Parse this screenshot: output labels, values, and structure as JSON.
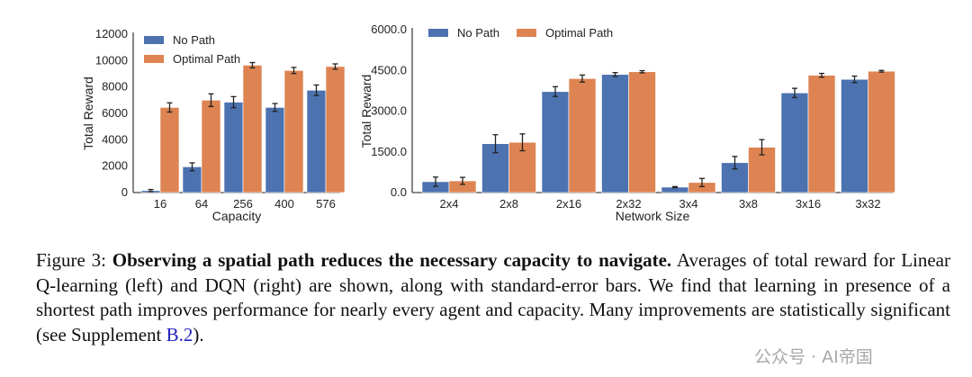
{
  "colors": {
    "no_path": "#4c72b0",
    "optimal_path": "#dd8452"
  },
  "chart_data": [
    {
      "type": "bar",
      "title": "",
      "xlabel": "Capacity",
      "ylabel": "Total Reward",
      "ylim": [
        0,
        12000
      ],
      "yticks": [
        "0",
        "2000",
        "4000",
        "6000",
        "8000",
        "10000",
        "12000"
      ],
      "categories": [
        "16",
        "64",
        "256",
        "400",
        "576"
      ],
      "legend": "top-left",
      "series": [
        {
          "name": "No Path",
          "values": [
            150,
            1950,
            6850,
            6450,
            7750
          ],
          "stderr": [
            80,
            300,
            420,
            300,
            400
          ]
        },
        {
          "name": "Optimal Path",
          "values": [
            6450,
            7000,
            9650,
            9250,
            9550
          ],
          "stderr": [
            350,
            480,
            200,
            230,
            200
          ]
        }
      ]
    },
    {
      "type": "bar",
      "title": "",
      "xlabel": "Network Size",
      "ylabel": "Total Reward",
      "ylim": [
        0,
        6000
      ],
      "yticks": [
        "0.0",
        "1500.0",
        "3000.0",
        "4500.0",
        "6000.0"
      ],
      "categories": [
        "2x4",
        "2x8",
        "2x16",
        "2x32",
        "3x4",
        "3x8",
        "3x16",
        "3x32"
      ],
      "legend": "top-left",
      "series": [
        {
          "name": "No Path",
          "values": [
            400,
            1800,
            3720,
            4350,
            200,
            1100,
            3670,
            4170
          ],
          "stderr": [
            170,
            330,
            180,
            70,
            20,
            230,
            170,
            120
          ]
        },
        {
          "name": "Optimal Path",
          "values": [
            430,
            1850,
            4200,
            4450,
            370,
            1670,
            4320,
            4470
          ],
          "stderr": [
            130,
            310,
            130,
            40,
            150,
            280,
            70,
            30
          ]
        }
      ]
    }
  ],
  "caption": {
    "label": "Figure 3:",
    "title": "Observing a spatial path reduces the necessary capacity to navigate.",
    "body": "Averages of total reward for Linear Q-learning (left) and DQN (right) are shown, along with standard-error bars. We find that learning in presence of a shortest path improves performance for nearly every agent and capacity. Many improvements are statistically significant (see Supplement ",
    "link": "B.2",
    "end": ")."
  },
  "watermark": "公众号 · AI帝国"
}
